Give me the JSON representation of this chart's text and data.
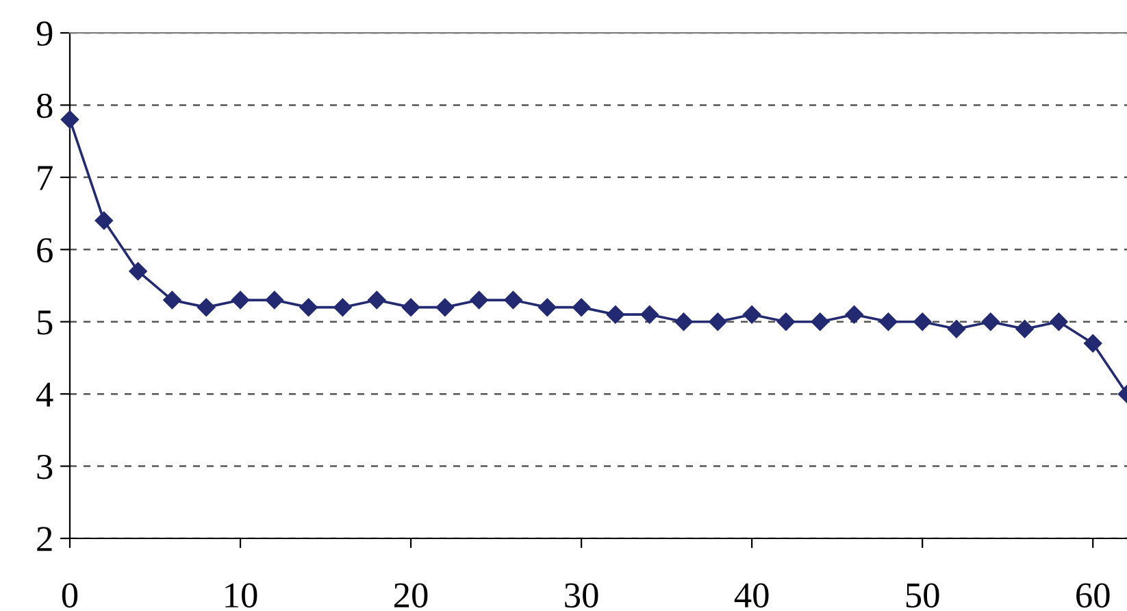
{
  "chart_data": {
    "type": "line",
    "x": [
      0,
      2,
      4,
      6,
      8,
      10,
      12,
      14,
      16,
      18,
      20,
      22,
      24,
      26,
      28,
      30,
      32,
      34,
      36,
      38,
      40,
      42,
      44,
      46,
      48,
      50,
      52,
      54,
      56,
      58,
      60,
      62
    ],
    "series": [
      {
        "color": "#232a72",
        "values": [
          7.8,
          6.4,
          5.7,
          5.3,
          5.2,
          5.3,
          5.3,
          5.2,
          5.2,
          5.3,
          5.2,
          5.2,
          5.3,
          5.3,
          5.2,
          5.2,
          5.1,
          5.1,
          5.0,
          5.0,
          5.1,
          5.0,
          5.0,
          5.1,
          5.0,
          5.0,
          4.9,
          5.0,
          4.9,
          5.0,
          4.7,
          4.0
        ]
      }
    ],
    "xlim": [
      0,
      62
    ],
    "ylim": [
      2,
      9
    ],
    "xticks": [
      0,
      10,
      20,
      30,
      40,
      50,
      60
    ],
    "yticks": [
      2,
      3,
      4,
      5,
      6,
      7,
      8,
      9
    ],
    "grid": "y",
    "marker": "diamond",
    "line_style": "solid",
    "legend": false
  }
}
